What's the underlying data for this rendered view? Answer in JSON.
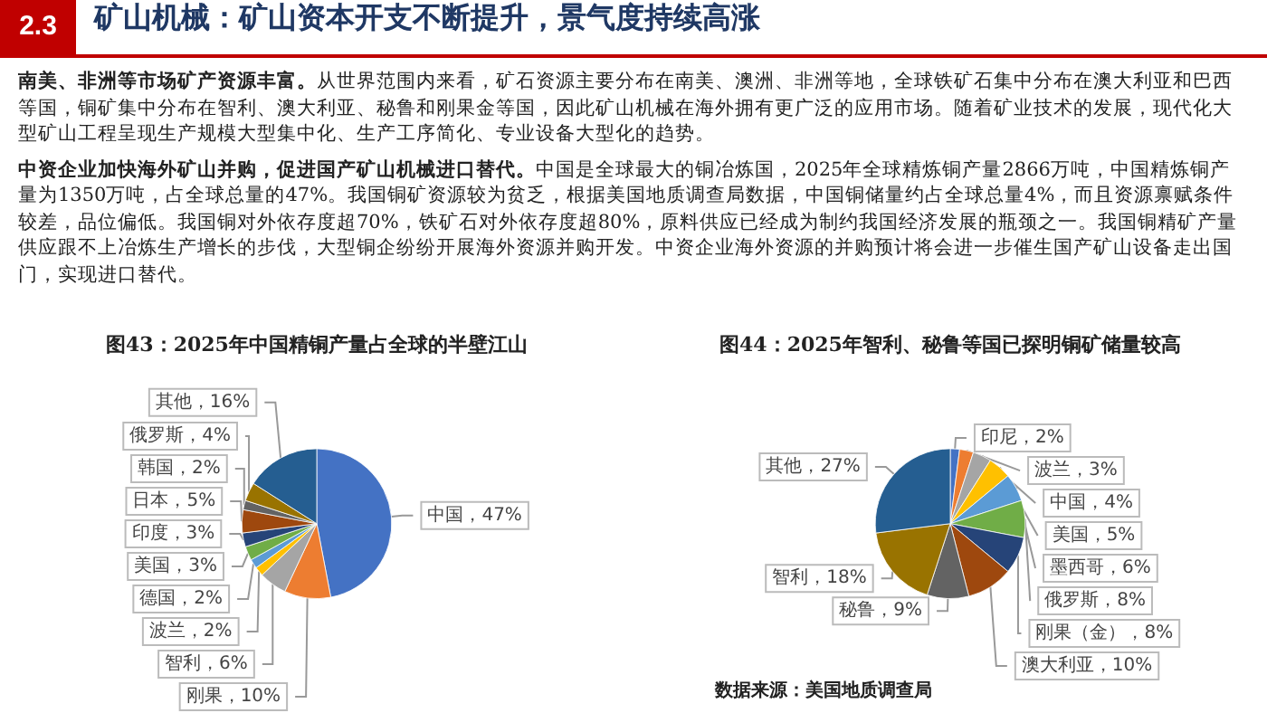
{
  "chart_data": [
    {
      "type": "other",
      "title": "矿山机械：矿山资本开支不断提升，景气度持续高涨",
      "annotations": [
        "2.3",
        "南美、非洲等市场矿产资源丰富。",
        "从世界范围内来看，矿石资源主要分布在南美、澳洲、非洲等地，全球铁矿石集中分布在澳大利亚和巴西等国，铜矿集中分布在智利、澳大利亚、秘鲁和刚果金等国，因此矿山机械在海外拥有更广泛的应用市场。随着矿业技术的发展，现代化大型矿山工程呈现生产规模大型集中化、生产工序简化、专业设备大型化的趋势。",
        "中资企业加快海外矿山并购，促进国产矿山机械进口替代。",
        "中国是全球最大的铜冶炼国，2025年全球精炼铜产量2866万吨，中国精炼铜产量为1350万吨，占全球总量的47%。我国铜矿资源较为贫乏，根据美国地质调查局数据，中国铜储量约占全球总量4%，而且资源禀赋条件较差，品位偏低。我国铜对外依存度超70%，铁矿石对外依存度超80%，原料供应已经成为制约我国经济发展的瓶颈之一。我国铜精矿产量供应跟不上冶炼生产增长的步伐，大型铜企纷纷开展海外资源并购开发。中资企业海外资源的并购预计将会进一步催生国产矿山设备走出国门，实现进口替代。"
      ]
    },
    {
      "type": "pie",
      "title": "图43：2025年中国精铜产量占全球的半壁江山",
      "categories": [
        "中国",
        "刚果",
        "智利",
        "波兰",
        "德国",
        "美国",
        "印度",
        "日本",
        "韩国",
        "俄罗斯",
        "其他"
      ],
      "values": [
        47,
        10,
        6,
        2,
        2,
        3,
        3,
        5,
        2,
        4,
        16
      ],
      "value_labels": [
        "47%",
        "10%",
        "6%",
        "2%",
        "2%",
        "3%",
        "3%",
        "5%",
        "2%",
        "4%",
        "16%"
      ],
      "colors": [
        "#4472c4",
        "#ed7d31",
        "#a5a5a5",
        "#ffc000",
        "#5b9bd5",
        "#70ad47",
        "#264478",
        "#9e480e",
        "#636363",
        "#997300",
        "#255e91"
      ]
    },
    {
      "type": "pie",
      "title": "图44：2025年智利、秘鲁等国已探明铜矿储量较高",
      "categories": [
        "印尼",
        "波兰",
        "中国",
        "美国",
        "墨西哥",
        "俄罗斯",
        "刚果（金）",
        "澳大利亚",
        "秘鲁",
        "智利",
        "其他"
      ],
      "values": [
        2,
        3,
        4,
        5,
        6,
        8,
        8,
        10,
        9,
        18,
        27
      ],
      "value_labels": [
        "2%",
        "3%",
        "4%",
        "5%",
        "6%",
        "8%",
        "8%",
        "10%",
        "9%",
        "18%",
        "27%"
      ],
      "colors": [
        "#4472c4",
        "#ed7d31",
        "#a5a5a5",
        "#ffc000",
        "#5b9bd5",
        "#70ad47",
        "#264478",
        "#9e480e",
        "#636363",
        "#997300",
        "#255e91"
      ],
      "annotations": [
        "数据来源：美国地质调查局"
      ]
    }
  ]
}
